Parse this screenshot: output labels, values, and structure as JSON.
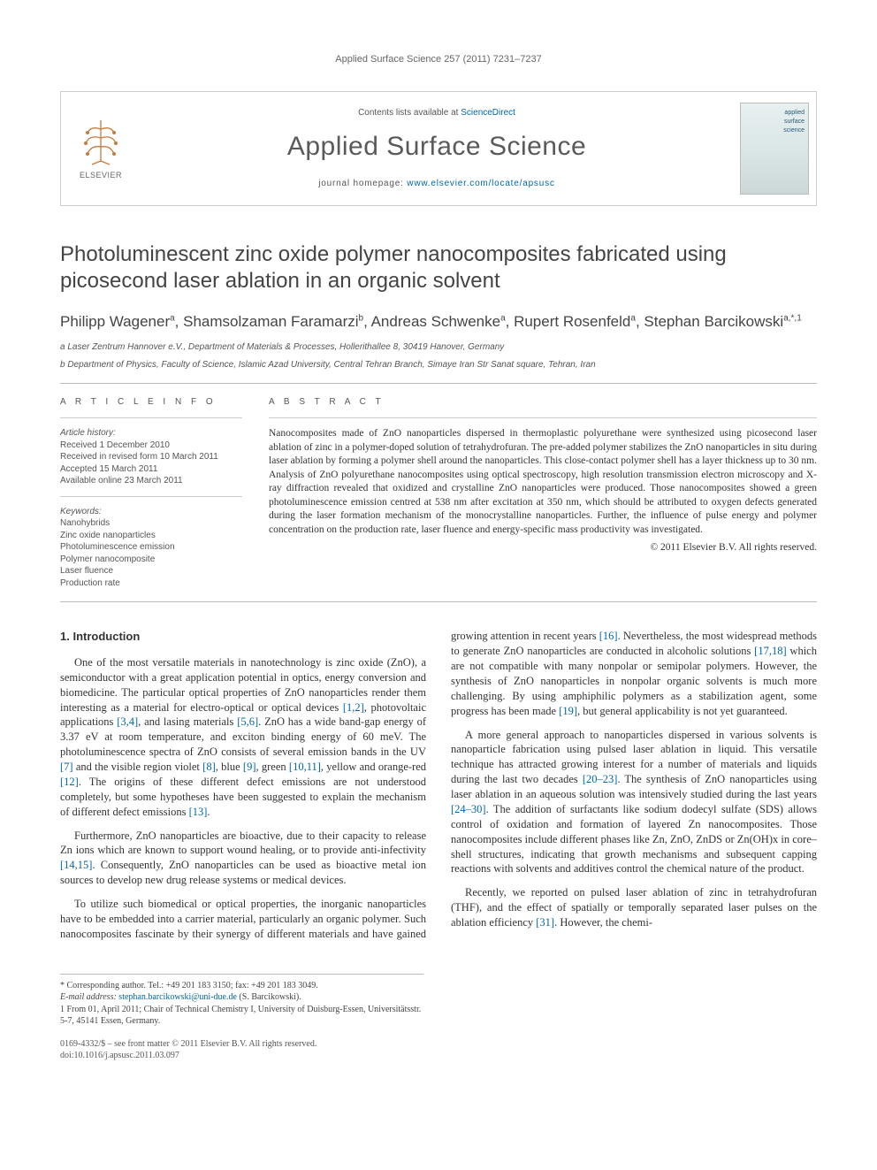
{
  "running_head": "Applied Surface Science 257 (2011) 7231–7237",
  "masthead": {
    "publisher_label": "ELSEVIER",
    "contents_prefix": "Contents lists available at ",
    "contents_link": "ScienceDirect",
    "journal_name": "Applied Surface Science",
    "homepage_prefix": "journal homepage: ",
    "homepage_url": "www.elsevier.com/locate/apsusc",
    "cover_line1": "applied",
    "cover_line2": "surface",
    "cover_line3": "science"
  },
  "title": "Photoluminescent zinc oxide polymer nanocomposites fabricated using picosecond laser ablation in an organic solvent",
  "authors_html": "Philipp Wagener<sup>a</sup>, Shamsolzaman Faramarzi<sup>b</sup>, Andreas Schwenke<sup>a</sup>, Rupert Rosenfeld<sup>a</sup>, Stephan Barcikowski<sup>a,*,1</sup>",
  "affiliations": {
    "a": "a Laser Zentrum Hannover e.V., Department of Materials & Processes, Hollerithallee 8, 30419 Hanover, Germany",
    "b": "b Department of Physics, Faculty of Science, Islamic Azad University, Central Tehran Branch, Simaye Iran Str Sanat square, Tehran, Iran"
  },
  "info": {
    "head": "A R T I C L E   I N F O",
    "history_label": "Article history:",
    "received": "Received 1 December 2010",
    "revised": "Received in revised form 10 March 2011",
    "accepted": "Accepted 15 March 2011",
    "online": "Available online 23 March 2011",
    "keywords_label": "Keywords:",
    "keywords": [
      "Nanohybrids",
      "Zinc oxide nanoparticles",
      "Photoluminescence emission",
      "Polymer nanocomposite",
      "Laser fluence",
      "Production rate"
    ]
  },
  "abstract": {
    "head": "A B S T R A C T",
    "text": "Nanocomposites made of ZnO nanoparticles dispersed in thermoplastic polyurethane were synthesized using picosecond laser ablation of zinc in a polymer-doped solution of tetrahydrofuran. The pre-added polymer stabilizes the ZnO nanoparticles in situ during laser ablation by forming a polymer shell around the nanoparticles. This close-contact polymer shell has a layer thickness up to 30 nm. Analysis of ZnO polyurethane nanocomposites using optical spectroscopy, high resolution transmission electron microscopy and X-ray diffraction revealed that oxidized and crystalline ZnO nanoparticles were produced. Those nanocomposites showed a green photoluminescence emission centred at 538 nm after excitation at 350 nm, which should be attributed to oxygen defects generated during the laser formation mechanism of the monocrystalline nanoparticles. Further, the influence of pulse energy and polymer concentration on the production rate, laser fluence and energy-specific mass productivity was investigated.",
    "copyright": "© 2011 Elsevier B.V. All rights reserved."
  },
  "section1": {
    "heading": "1.  Introduction",
    "p1": "One of the most versatile materials in nanotechnology is zinc oxide (ZnO), a semiconductor with a great application potential in optics, energy conversion and biomedicine. The particular optical properties of ZnO nanoparticles render them interesting as a material for electro-optical or optical devices [1,2], photovoltaic applications [3,4], and lasing materials [5,6]. ZnO has a wide band-gap energy of 3.37 eV at room temperature, and exciton binding energy of 60 meV. The photoluminescence spectra of ZnO consists of several emission bands in the UV [7] and the visible region violet [8], blue [9], green [10,11], yellow and orange-red [12]. The origins of these different defect emissions are not understood completely, but some hypotheses have been suggested to explain the mechanism of different defect emissions [13].",
    "p2": "Furthermore, ZnO nanoparticles are bioactive, due to their capacity to release Zn ions which are known to support wound healing, or to provide anti-infectivity [14,15]. Consequently, ZnO nanoparticles can be used as bioactive metal ion sources to develop new drug release systems or medical devices.",
    "p3": "To utilize such biomedical or optical properties, the inorganic nanoparticles have to be embedded into a carrier material, particularly an organic polymer. Such nanocomposites fascinate by their synergy of different materials and have gained growing attention in recent years [16]. Nevertheless, the most widespread methods to generate ZnO nanoparticles are conducted in alcoholic solutions [17,18] which are not compatible with many nonpolar or semipolar polymers. However, the synthesis of ZnO nanoparticles in nonpolar organic solvents is much more challenging. By using amphiphilic polymers as a stabilization agent, some progress has been made [19], but general applicability is not yet guaranteed.",
    "p4": "A more general approach to nanoparticles dispersed in various solvents is nanoparticle fabrication using pulsed laser ablation in liquid. This versatile technique has attracted growing interest for a number of materials and liquids during the last two decades [20–23]. The synthesis of ZnO nanoparticles using laser ablation in an aqueous solution was intensively studied during the last years [24–30]. The addition of surfactants like sodium dodecyl sulfate (SDS) allows control of oxidation and formation of layered Zn nanocomposites. Those nanocomposites include different phases like Zn, ZnO, ZnDS or Zn(OH)x in core–shell structures, indicating that growth mechanisms and subsequent capping reactions with solvents and additives control the chemical nature of the product.",
    "p5": "Recently, we reported on pulsed laser ablation of zinc in tetrahydrofuran (THF), and the effect of spatially or temporally separated laser pulses on the ablation efficiency [31]. However, the chemi-"
  },
  "footnotes": {
    "corr": "* Corresponding author. Tel.: +49 201 183 3150; fax: +49 201 183 3049.",
    "email_label": "E-mail address: ",
    "email": "stephan.barcikowski@uni-due.de",
    "email_suffix": " (S. Barcikowski).",
    "note1": "1 From 01, April 2011; Chair of Technical Chemistry I, University of Duisburg-Essen, Universitätsstr. 5-7, 45141 Essen, Germany."
  },
  "doi": {
    "line1": "0169-4332/$ – see front matter © 2011 Elsevier B.V. All rights reserved.",
    "line2": "doi:10.1016/j.apsusc.2011.03.097"
  },
  "colors": {
    "link": "#0066aa",
    "text": "#333333",
    "muted": "#666666",
    "rule": "#bbbbbb"
  }
}
